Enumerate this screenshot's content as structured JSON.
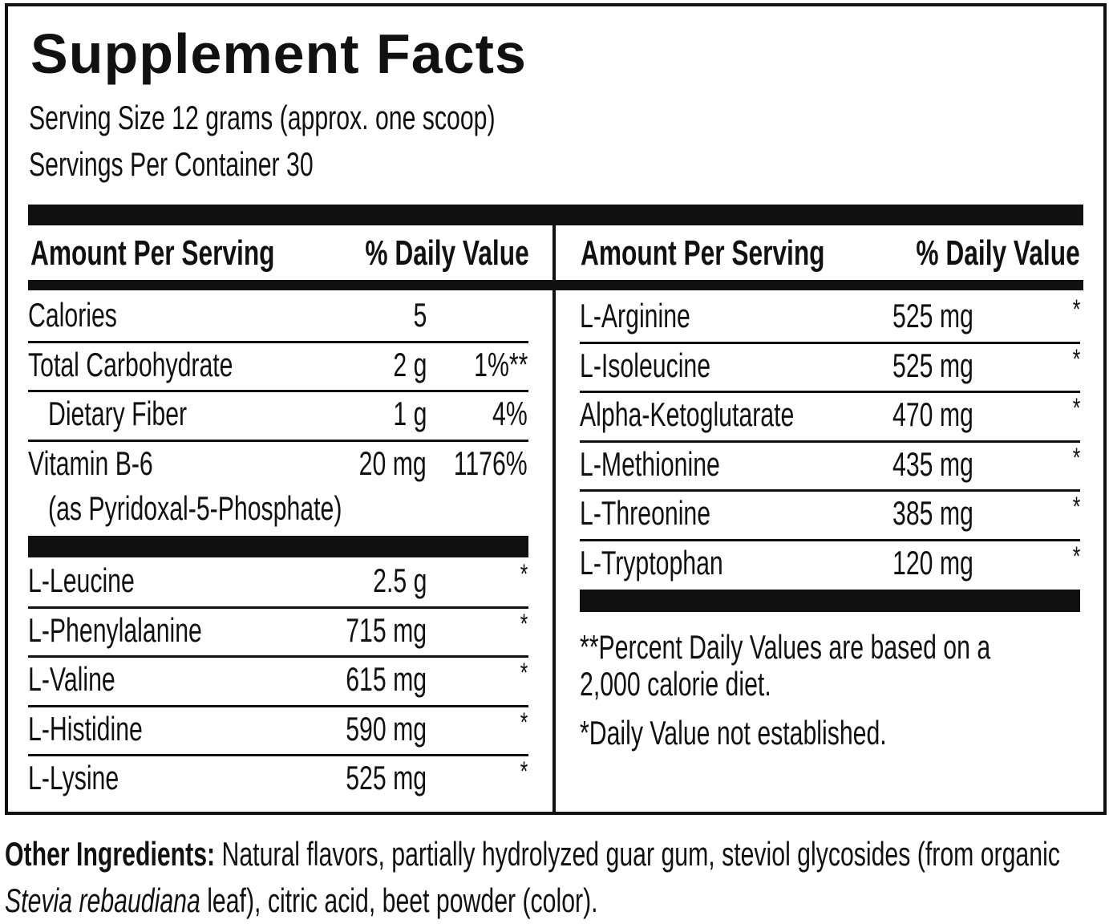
{
  "title": "Supplement Facts",
  "serving_size": "Serving Size 12 grams (approx. one scoop)",
  "servings_per_container": "Servings Per Container 30",
  "left": {
    "header": [
      "Amount Per Serving",
      "% Daily Value"
    ],
    "rows": [
      {
        "name": "Calories",
        "amount": "5"
      },
      {
        "name": "Total Carbohydrate",
        "amount": "2 g",
        "dv": "1%**"
      },
      {
        "name": "Dietary Fiber",
        "amount": "1 g",
        "dv": "4%",
        "indent": true
      },
      {
        "name": "Vitamin B-6",
        "note": "(as Pyridoxal-5-Phosphate)",
        "amount": "20 mg",
        "dv": "1176%"
      }
    ],
    "amino": [
      {
        "name": "L-Leucine",
        "amount": "2.5 g",
        "dv": "*"
      },
      {
        "name": "L-Phenylalanine",
        "amount": "715 mg",
        "dv": "*"
      },
      {
        "name": "L-Valine",
        "amount": "615 mg",
        "dv": "*"
      },
      {
        "name": "L-Histidine",
        "amount": "590 mg",
        "dv": "*"
      },
      {
        "name": "L-Lysine",
        "amount": "525 mg",
        "dv": "*"
      }
    ]
  },
  "right": {
    "header": [
      "Amount Per Serving",
      "% Daily Value"
    ],
    "rows": [
      {
        "name": "L-Arginine",
        "amount": "525 mg",
        "dv": "*"
      },
      {
        "name": "L-Isoleucine",
        "amount": "525 mg",
        "dv": "*"
      },
      {
        "name": "Alpha-Ketoglutarate",
        "amount": "470 mg",
        "dv": "*"
      },
      {
        "name": "L-Methionine",
        "amount": "435 mg",
        "dv": "*"
      },
      {
        "name": "L-Threonine",
        "amount": "385 mg",
        "dv": "*"
      },
      {
        "name": "L-Tryptophan",
        "amount": "120 mg",
        "dv": "*"
      }
    ],
    "footnotes": [
      "**Percent Daily Values are based on a",
      "2,000 calorie diet.",
      "*Daily Value not established."
    ]
  },
  "other_ingredients": {
    "label": "Other Ingredients:",
    "text_before": "Natural flavors, partially hydrolyzed guar gum, steviol glycosides (from organic",
    "italic": "Stevia rebaudiana",
    "text_after": "leaf), citric acid, beet powder (color)."
  }
}
